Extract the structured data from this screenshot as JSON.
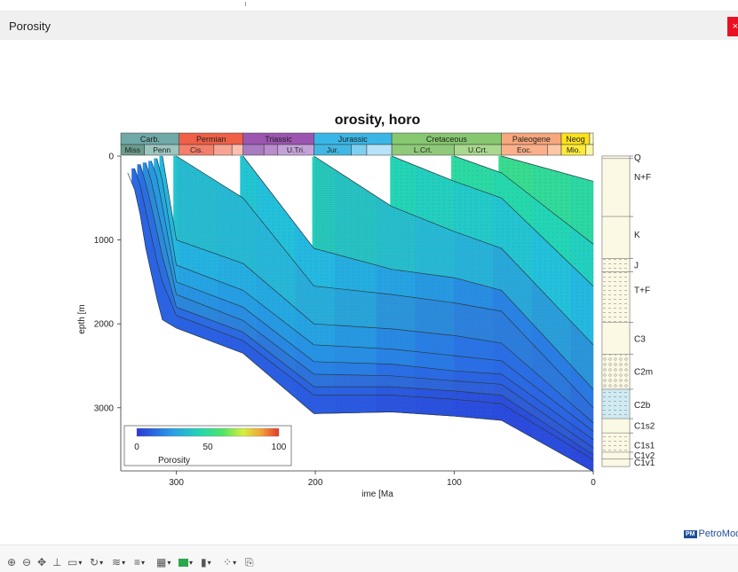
{
  "window": {
    "title": "Porosity",
    "close_label": "×"
  },
  "brand": {
    "badge": "PM",
    "name": "PetroMod"
  },
  "chart_data": {
    "type": "area",
    "title": "orosity, horo",
    "xlabel": "ime [Ma",
    "ylabel": "epth [m",
    "x_ticks": [
      "300",
      "200",
      "100",
      "0"
    ],
    "y_ticks": [
      "0",
      "1000",
      "2000",
      "3000"
    ],
    "xlim": [
      340,
      0
    ],
    "ylim": [
      0,
      3700
    ],
    "legend": {
      "label": "Porosity",
      "ticks": [
        "0",
        "50",
        "100"
      ],
      "placement": "bottom-left",
      "range": [
        0,
        100
      ]
    },
    "periods": [
      {
        "name": "Carb.",
        "start": 340,
        "end": 298,
        "color": "#6fa9a8"
      },
      {
        "name": "Permian",
        "start": 298,
        "end": 252,
        "color": "#ef6047"
      },
      {
        "name": "Triassic",
        "start": 252,
        "end": 201,
        "color": "#9c55b0"
      },
      {
        "name": "Jurassic",
        "start": 201,
        "end": 145,
        "color": "#3ab6e6"
      },
      {
        "name": "Cretaceous",
        "start": 145,
        "end": 66,
        "color": "#86c870"
      },
      {
        "name": "Paleogene",
        "start": 66,
        "end": 23,
        "color": "#f7a77c"
      },
      {
        "name": "Neog",
        "start": 23,
        "end": 2.6,
        "color": "#ffe11a"
      },
      {
        "name": "",
        "start": 2.6,
        "end": 0,
        "color": "#f9f7c3"
      }
    ],
    "epochs": [
      {
        "name": "Miss",
        "start": 340,
        "end": 323,
        "color": "#6b9c8c"
      },
      {
        "name": "Penn",
        "start": 323,
        "end": 298,
        "color": "#9cc5be"
      },
      {
        "name": "Cis.",
        "start": 298,
        "end": 273,
        "color": "#f47f6a"
      },
      {
        "name": "",
        "start": 273,
        "end": 260,
        "color": "#f8a494"
      },
      {
        "name": "",
        "start": 260,
        "end": 252,
        "color": "#fbc0b0"
      },
      {
        "name": "",
        "start": 252,
        "end": 237,
        "color": "#a77cc0"
      },
      {
        "name": "",
        "start": 237,
        "end": 227,
        "color": "#b98ccc"
      },
      {
        "name": "U.Tri.",
        "start": 227,
        "end": 201,
        "color": "#c4a2d8"
      },
      {
        "name": "Jur.",
        "start": 201,
        "end": 174,
        "color": "#41b8e4"
      },
      {
        "name": "",
        "start": 174,
        "end": 163,
        "color": "#7fd0f0"
      },
      {
        "name": "",
        "start": 163,
        "end": 145,
        "color": "#b6e3f7"
      },
      {
        "name": "L.Crt.",
        "start": 145,
        "end": 100,
        "color": "#8fca7a"
      },
      {
        "name": "U.Crt.",
        "start": 100,
        "end": 66,
        "color": "#a9d88f"
      },
      {
        "name": "Eoc.",
        "start": 66,
        "end": 33,
        "color": "#fbb08a"
      },
      {
        "name": "",
        "start": 33,
        "end": 23,
        "color": "#fdc7a6"
      },
      {
        "name": "Mio.",
        "start": 23,
        "end": 5.3,
        "color": "#ffeb3b"
      },
      {
        "name": "",
        "start": 5.3,
        "end": 0,
        "color": "#fff7a0"
      }
    ],
    "horizon_ages": [
      335,
      330,
      326,
      322,
      318,
      314,
      310,
      300,
      252,
      201,
      145,
      100,
      66
    ],
    "horizon_mid_ages": [
      291,
      280,
      266,
      245,
      225,
      180,
      160,
      125,
      85,
      50
    ],
    "horizon_depths_present": [
      3760,
      3620,
      3560,
      3480,
      3380,
      3280,
      3180,
      3000,
      2780,
      2250,
      1550,
      1050,
      300,
      0
    ],
    "horizon_points": [
      [
        [
          335,
          200
        ],
        [
          330,
          400
        ],
        [
          326,
          700
        ],
        [
          322,
          1100
        ],
        [
          318,
          1400
        ],
        [
          314,
          1700
        ],
        [
          310,
          1950
        ],
        [
          300,
          2050
        ],
        [
          252,
          2350
        ],
        [
          201,
          3070
        ],
        [
          145,
          3050
        ],
        [
          100,
          3100
        ],
        [
          66,
          3150
        ],
        [
          0,
          3760
        ]
      ],
      [
        [
          330,
          150
        ],
        [
          326,
          350
        ],
        [
          322,
          650
        ],
        [
          318,
          950
        ],
        [
          314,
          1250
        ],
        [
          310,
          1500
        ],
        [
          300,
          1900
        ],
        [
          252,
          2200
        ],
        [
          201,
          2850
        ],
        [
          145,
          2850
        ],
        [
          100,
          2900
        ],
        [
          66,
          2950
        ],
        [
          0,
          3620
        ]
      ],
      [
        [
          326,
          100
        ],
        [
          322,
          330
        ],
        [
          318,
          600
        ],
        [
          314,
          900
        ],
        [
          310,
          1200
        ],
        [
          300,
          1800
        ],
        [
          252,
          2100
        ],
        [
          201,
          2750
        ],
        [
          145,
          2750
        ],
        [
          100,
          2800
        ],
        [
          66,
          2850
        ],
        [
          0,
          3560
        ]
      ],
      [
        [
          322,
          80
        ],
        [
          318,
          300
        ],
        [
          314,
          600
        ],
        [
          310,
          900
        ],
        [
          300,
          1650
        ],
        [
          252,
          1960
        ],
        [
          201,
          2600
        ],
        [
          145,
          2620
        ],
        [
          100,
          2680
        ],
        [
          66,
          2720
        ],
        [
          0,
          3480
        ]
      ],
      [
        [
          318,
          60
        ],
        [
          314,
          260
        ],
        [
          310,
          600
        ],
        [
          300,
          1500
        ],
        [
          252,
          1800
        ],
        [
          201,
          2450
        ],
        [
          145,
          2480
        ],
        [
          100,
          2560
        ],
        [
          66,
          2600
        ],
        [
          0,
          3380
        ]
      ],
      [
        [
          314,
          30
        ],
        [
          310,
          300
        ],
        [
          300,
          1300
        ],
        [
          252,
          1600
        ],
        [
          201,
          2250
        ],
        [
          145,
          2300
        ],
        [
          100,
          2380
        ],
        [
          66,
          2440
        ],
        [
          0,
          3280
        ]
      ],
      [
        [
          310,
          0
        ],
        [
          300,
          1000
        ],
        [
          252,
          1280
        ],
        [
          201,
          2000
        ],
        [
          145,
          2060
        ],
        [
          100,
          2140
        ],
        [
          66,
          2230
        ],
        [
          0,
          3180
        ]
      ],
      [
        [
          300,
          0
        ],
        [
          252,
          500
        ],
        [
          201,
          1550
        ],
        [
          145,
          1650
        ],
        [
          100,
          1750
        ],
        [
          66,
          1850
        ],
        [
          0,
          3000
        ]
      ],
      [
        [
          252,
          0
        ],
        [
          201,
          1100
        ],
        [
          145,
          1350
        ],
        [
          100,
          1450
        ],
        [
          66,
          1600
        ],
        [
          0,
          2780
        ]
      ],
      [
        [
          201,
          0
        ],
        [
          145,
          600
        ],
        [
          100,
          900
        ],
        [
          66,
          1100
        ],
        [
          0,
          2250
        ]
      ],
      [
        [
          145,
          0
        ],
        [
          100,
          300
        ],
        [
          66,
          500
        ],
        [
          0,
          1550
        ]
      ],
      [
        [
          100,
          0
        ],
        [
          66,
          200
        ],
        [
          0,
          1050
        ]
      ],
      [
        [
          66,
          0
        ],
        [
          0,
          300
        ]
      ]
    ],
    "porosity_fields": [
      {
        "from": 0,
        "to": 1,
        "values": [
          18,
          16,
          15,
          14,
          14,
          13,
          12,
          10,
          9,
          8,
          7,
          8,
          6
        ]
      },
      {
        "from": 1,
        "to": 2,
        "values": [
          22,
          20,
          19,
          18,
          17,
          16,
          15,
          12,
          10,
          9,
          8,
          9,
          7
        ]
      },
      {
        "from": 2,
        "to": 3,
        "values": [
          28,
          26,
          25,
          24,
          22,
          21,
          20,
          18,
          16,
          14,
          13,
          12,
          10
        ]
      },
      {
        "from": 3,
        "to": 4,
        "values": [
          30,
          28,
          27,
          26,
          25,
          24,
          23,
          20,
          18,
          16,
          15,
          14,
          12
        ]
      },
      {
        "from": 4,
        "to": 5,
        "values": [
          33,
          31,
          30,
          29,
          28,
          27,
          26,
          24,
          22,
          20,
          18,
          17,
          15
        ]
      },
      {
        "from": 5,
        "to": 6,
        "values": [
          36,
          34,
          33,
          32,
          31,
          30,
          28,
          25,
          23,
          21,
          20,
          19,
          17
        ]
      },
      {
        "from": 6,
        "to": 7,
        "values": [
          40,
          38,
          37,
          36,
          35,
          33,
          31,
          28,
          26,
          24,
          23,
          22,
          20
        ]
      },
      {
        "from": 7,
        "to": 8,
        "values": [
          45,
          42,
          40,
          38,
          36,
          34,
          32,
          30,
          28,
          26,
          24,
          23,
          22
        ]
      },
      {
        "from": 8,
        "to": 9,
        "values": [
          52,
          50,
          48,
          46,
          44,
          42,
          40,
          38,
          36,
          34,
          32,
          30,
          28
        ]
      },
      {
        "from": 9,
        "to": 10,
        "values": [
          58,
          56,
          54,
          52,
          50,
          48,
          46,
          44,
          42,
          40,
          38,
          36,
          34
        ]
      },
      {
        "from": 10,
        "to": 11,
        "values": [
          62,
          60,
          58,
          57,
          56,
          55,
          54,
          52,
          50,
          48,
          46,
          44,
          42
        ]
      },
      {
        "from": 11,
        "to": 12,
        "values": [
          66,
          64,
          62,
          61,
          60,
          59,
          58,
          56,
          55,
          54,
          52,
          50,
          48
        ]
      }
    ],
    "lithology_column": [
      {
        "label": "Q",
        "from": 0,
        "to": 30,
        "fill": "#fbf8e4",
        "pattern": "none"
      },
      {
        "label": "N+F",
        "from": 30,
        "to": 720,
        "fill": "#fbf8e4",
        "pattern": "none"
      },
      {
        "label": "K",
        "from": 720,
        "to": 1220,
        "fill": "#fbf8e4",
        "pattern": "none"
      },
      {
        "label": "J",
        "from": 1220,
        "to": 1380,
        "fill": "#fbf8e4",
        "pattern": "dash"
      },
      {
        "label": "T+F",
        "from": 1380,
        "to": 1980,
        "fill": "#fbf8e4",
        "pattern": "dash"
      },
      {
        "label": "C3",
        "from": 1980,
        "to": 2360,
        "fill": "#fbf8e4",
        "pattern": "none"
      },
      {
        "label": "C2m",
        "from": 2360,
        "to": 2780,
        "fill": "#fbf8e4",
        "pattern": "circle"
      },
      {
        "label": "C2b",
        "from": 2780,
        "to": 3130,
        "fill": "#cfeaf2",
        "pattern": "dash"
      },
      {
        "label": "C1s2",
        "from": 3130,
        "to": 3300,
        "fill": "#fbf8e4",
        "pattern": "none"
      },
      {
        "label": "C1s1",
        "from": 3300,
        "to": 3530,
        "fill": "#fbf8e4",
        "pattern": "dash"
      },
      {
        "label": "C1v2",
        "from": 3530,
        "to": 3610,
        "fill": "#fbf8e4",
        "pattern": "none"
      },
      {
        "label": "C1v1",
        "from": 3610,
        "to": 3700,
        "fill": "#fbf8e4",
        "pattern": "none"
      }
    ]
  },
  "toolbar": {
    "items": [
      {
        "name": "zoom-in-icon",
        "glyph": "⊕",
        "dropdown": false
      },
      {
        "name": "zoom-out-icon",
        "glyph": "⊖",
        "dropdown": false
      },
      {
        "name": "pan-icon",
        "glyph": "✥",
        "dropdown": false
      },
      {
        "name": "axis-icon",
        "glyph": "⊥",
        "dropdown": false
      },
      {
        "name": "frame-icon",
        "glyph": "▭",
        "dropdown": true
      },
      {
        "name": "rotate-icon",
        "glyph": "↻",
        "dropdown": true
      },
      {
        "name": "contour-icon",
        "glyph": "≋",
        "dropdown": true
      },
      {
        "name": "lines-icon",
        "glyph": "≡",
        "dropdown": true
      },
      {
        "name": "grid-icon",
        "glyph": "▦",
        "dropdown": true
      },
      {
        "name": "color-scale-icon",
        "swatch": "#2aa84a",
        "dropdown": true
      },
      {
        "name": "bar-icon",
        "glyph": "▮",
        "dropdown": true
      },
      {
        "name": "pattern-icon",
        "glyph": "⁘",
        "dropdown": true
      },
      {
        "name": "export-icon",
        "glyph": "⎘",
        "dropdown": false
      }
    ]
  }
}
